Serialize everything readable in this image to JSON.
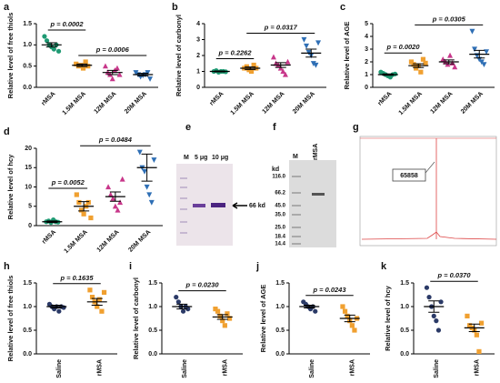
{
  "chart_data": [
    {
      "type": "dot",
      "panel": "a",
      "ylabel": "Relative level of free thiols",
      "categories": [
        "rMSA",
        "1.5M MSA",
        "12M MSA",
        "20M MSA"
      ],
      "colors": [
        "#1f9a73",
        "#f0a030",
        "#c8378a",
        "#2f6fb5"
      ],
      "markers": [
        "circle",
        "square",
        "triangle",
        "triangle-down"
      ],
      "points": [
        [
          1.2,
          1.1,
          1.0,
          0.95,
          0.9,
          1.0,
          0.85
        ],
        [
          0.55,
          0.5,
          0.52,
          0.45,
          0.6,
          0.5
        ],
        [
          0.5,
          0.35,
          0.3,
          0.2,
          0.4,
          0.45,
          0.3
        ],
        [
          0.35,
          0.3,
          0.25,
          0.28,
          0.3,
          0.35,
          0.2
        ]
      ],
      "means": [
        1.0,
        0.52,
        0.35,
        0.3
      ],
      "sems": [
        0.05,
        0.03,
        0.05,
        0.03
      ],
      "comparisons": [
        {
          "label": "p = 0.0002",
          "between": [
            "rMSA",
            "1.5M MSA"
          ]
        },
        {
          "label": "p = 0.0006",
          "between": [
            "1.5M MSA",
            "20M MSA"
          ]
        }
      ],
      "ylim": [
        0,
        1.5
      ],
      "yticks": [
        {
          "value": 0,
          "label": "0.0"
        },
        0.5,
        {
          "value": 1,
          "label": "1.0"
        },
        1.5
      ]
    },
    {
      "type": "dot",
      "panel": "b",
      "ylabel": "Relative level of carbonyl",
      "categories": [
        "rMSA",
        "1.5M MSA",
        "12M MSA",
        "20M MSA"
      ],
      "colors": [
        "#1f9a73",
        "#f0a030",
        "#c8378a",
        "#2f6fb5"
      ],
      "markers": [
        "circle",
        "square",
        "triangle",
        "triangle-down"
      ],
      "points": [
        [
          1.0,
          1.05,
          0.95,
          1.0,
          1.0,
          0.98
        ],
        [
          1.2,
          1.3,
          1.1,
          1.0,
          1.4,
          1.2
        ],
        [
          1.9,
          1.5,
          1.4,
          1.2,
          1.0,
          0.8,
          1.6
        ],
        [
          3.0,
          2.6,
          2.2,
          2.0,
          1.5,
          1.4,
          2.8
        ]
      ],
      "means": [
        1.0,
        1.2,
        1.4,
        2.15
      ],
      "sems": [
        0.03,
        0.08,
        0.15,
        0.25
      ],
      "comparisons": [
        {
          "label": "p = 0.2262",
          "between": [
            "rMSA",
            "1.5M MSA"
          ]
        },
        {
          "label": "p = 0.0317",
          "between": [
            "1.5M MSA",
            "20M MSA"
          ]
        }
      ],
      "ylim": [
        0,
        4
      ],
      "yticks": [
        0,
        1,
        2,
        3,
        4
      ]
    },
    {
      "type": "dot",
      "panel": "c",
      "ylabel": "Relative level of AGE",
      "categories": [
        "rMSA",
        "1.5M MSA",
        "12M MSA",
        "20M MSA"
      ],
      "colors": [
        "#1f9a73",
        "#f0a030",
        "#c8378a",
        "#2f6fb5"
      ],
      "markers": [
        "circle",
        "square",
        "triangle",
        "triangle-down"
      ],
      "points": [
        [
          1.2,
          1.1,
          1.0,
          0.9,
          0.8,
          1.0,
          1.05
        ],
        [
          2.0,
          1.8,
          1.5,
          1.7,
          1.2,
          2.2,
          1.9
        ],
        [
          2.2,
          2.0,
          1.8,
          2.5,
          1.9,
          1.6
        ],
        [
          4.4,
          3.0,
          2.5,
          2.2,
          2.0,
          1.8,
          2.8
        ]
      ],
      "means": [
        1.0,
        1.7,
        2.0,
        2.6
      ],
      "sems": [
        0.05,
        0.15,
        0.15,
        0.3
      ],
      "comparisons": [
        {
          "label": "p = 0.0020",
          "between": [
            "rMSA",
            "1.5M MSA"
          ]
        },
        {
          "label": "p = 0.0305",
          "between": [
            "1.5M MSA",
            "20M MSA"
          ]
        }
      ],
      "ylim": [
        0,
        5
      ],
      "yticks": [
        0,
        1,
        2,
        3,
        4,
        5
      ]
    },
    {
      "type": "dot",
      "panel": "d",
      "ylabel": "Relative level of hcy",
      "categories": [
        "rMSA",
        "1.5M MSA",
        "12M MSA",
        "20M MSA"
      ],
      "colors": [
        "#1f9a73",
        "#f0a030",
        "#c8378a",
        "#2f6fb5"
      ],
      "markers": [
        "circle",
        "square",
        "triangle",
        "triangle-down"
      ],
      "points": [
        [
          1,
          1.2,
          0.8,
          1.5,
          1,
          0.9
        ],
        [
          8,
          6,
          4,
          3,
          5,
          6,
          2
        ],
        [
          10,
          8,
          7,
          5,
          4,
          6,
          12
        ],
        [
          19,
          15,
          14,
          10,
          8,
          6,
          17
        ]
      ],
      "means": [
        1.0,
        5,
        7.5,
        15
      ],
      "sems": [
        0.2,
        1.2,
        1.2,
        3.5
      ],
      "comparisons": [
        {
          "label": "p = 0.0052",
          "between": [
            "rMSA",
            "1.5M MSA"
          ]
        },
        {
          "label": "p = 0.0484",
          "between": [
            "1.5M MSA",
            "20M MSA"
          ]
        }
      ],
      "ylim": [
        0,
        20
      ],
      "yticks": [
        0,
        5,
        10,
        15,
        20
      ]
    },
    {
      "type": "dot",
      "panel": "h",
      "ylabel": "Relative level of free thiols",
      "categories": [
        "Saline",
        "rMSA"
      ],
      "colors": [
        "#2b3a67",
        "#f0a030"
      ],
      "markers": [
        "circle",
        "square"
      ],
      "points": [
        [
          1.05,
          1.0,
          0.95,
          1.0,
          0.9,
          1.0,
          0.98
        ],
        [
          1.35,
          1.2,
          1.1,
          1.0,
          1.15,
          0.9,
          1.3
        ]
      ],
      "means": [
        1.0,
        1.1
      ],
      "sems": [
        0.03,
        0.07
      ],
      "comparisons": [
        {
          "label": "p = 0.1635",
          "between": [
            "Saline",
            "rMSA"
          ]
        }
      ],
      "ylim": [
        0,
        1.5
      ],
      "yticks": [
        {
          "value": 0,
          "label": "0.0"
        },
        0.5,
        {
          "value": 1,
          "label": "1.0"
        },
        1.5
      ]
    },
    {
      "type": "dot",
      "panel": "i",
      "ylabel": "Relative level of carbonyl",
      "categories": [
        "Saline",
        "rMSA"
      ],
      "colors": [
        "#2b3a67",
        "#f0a030"
      ],
      "markers": [
        "circle",
        "square"
      ],
      "points": [
        [
          1.2,
          1.1,
          1.0,
          0.9,
          1.0,
          0.95
        ],
        [
          0.95,
          0.9,
          0.8,
          0.7,
          0.6,
          0.85,
          0.75
        ]
      ],
      "means": [
        1.0,
        0.78
      ],
      "sems": [
        0.05,
        0.05
      ],
      "comparisons": [
        {
          "label": "p = 0.0230",
          "between": [
            "Saline",
            "rMSA"
          ]
        }
      ],
      "ylim": [
        0,
        1.5
      ],
      "yticks": [
        {
          "value": 0,
          "label": "0.0"
        },
        0.5,
        {
          "value": 1,
          "label": "1.0"
        },
        1.5
      ]
    },
    {
      "type": "dot",
      "panel": "j",
      "ylabel": "Relative level of AGE",
      "categories": [
        "Saline",
        "rMSA"
      ],
      "colors": [
        "#2b3a67",
        "#f0a030"
      ],
      "markers": [
        "circle",
        "square"
      ],
      "points": [
        [
          1.1,
          1.05,
          1.0,
          0.95,
          1.0,
          0.9
        ],
        [
          1.0,
          0.9,
          0.8,
          0.7,
          0.6,
          0.5,
          0.75
        ]
      ],
      "means": [
        1.0,
        0.75
      ],
      "sems": [
        0.03,
        0.07
      ],
      "comparisons": [
        {
          "label": "p = 0.0243",
          "between": [
            "Saline",
            "rMSA"
          ]
        }
      ],
      "ylim": [
        0,
        1.5
      ],
      "yticks": [
        {
          "value": 0,
          "label": "0.0"
        },
        0.5,
        {
          "value": 1,
          "label": "1.0"
        },
        1.5
      ]
    },
    {
      "type": "dot",
      "panel": "k",
      "ylabel": "Relative level of hcy",
      "categories": [
        "Saline",
        "rMSA"
      ],
      "colors": [
        "#2b3a67",
        "#f0a030"
      ],
      "markers": [
        "circle",
        "square"
      ],
      "points": [
        [
          1.4,
          1.2,
          1.0,
          0.8,
          0.7,
          0.5,
          1.1
        ],
        [
          0.8,
          0.6,
          0.55,
          0.5,
          0.4,
          0.05,
          0.65
        ]
      ],
      "means": [
        1.0,
        0.55
      ],
      "sems": [
        0.12,
        0.08
      ],
      "comparisons": [
        {
          "label": "p = 0.0370",
          "between": [
            "Saline",
            "rMSA"
          ]
        }
      ],
      "ylim": [
        0,
        1.5
      ],
      "yticks": [
        {
          "value": 0,
          "label": "0.0"
        },
        0.5,
        {
          "value": 1,
          "label": "1.0"
        },
        1.5
      ]
    }
  ],
  "panels": {
    "e": {
      "panel": "e",
      "lanes": [
        "M",
        "5 μg",
        "10 μg"
      ],
      "band_label": "66 kd"
    },
    "f": {
      "panel": "f",
      "lanes": [
        "M",
        "rMSA"
      ],
      "unit": "kd",
      "ladder": [
        "116.0",
        "66.2",
        "45.0",
        "35.0",
        "25.0",
        "18.4",
        "14.4"
      ]
    },
    "g": {
      "panel": "g",
      "peak_label": "65858"
    }
  }
}
